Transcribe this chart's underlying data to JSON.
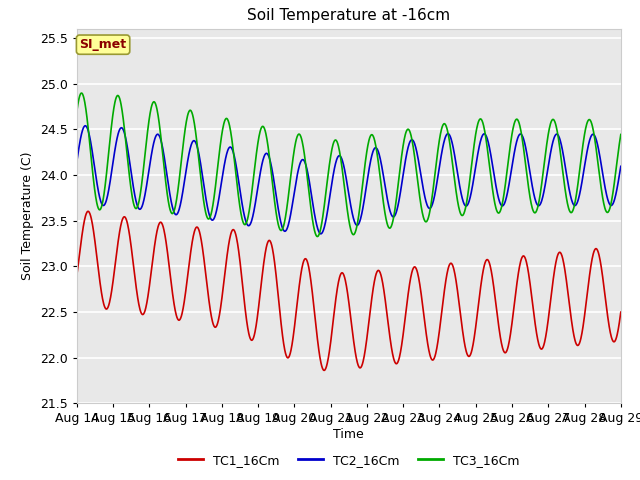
{
  "title": "Soil Temperature at -16cm",
  "xlabel": "Time",
  "ylabel": "Soil Temperature (C)",
  "ylim": [
    21.5,
    25.6
  ],
  "xlim": [
    0,
    15.0
  ],
  "xtick_labels": [
    "Aug 14",
    "Aug 15",
    "Aug 16",
    "Aug 17",
    "Aug 18",
    "Aug 19",
    "Aug 20",
    "Aug 21",
    "Aug 22",
    "Aug 23",
    "Aug 24",
    "Aug 25",
    "Aug 26",
    "Aug 27",
    "Aug 28",
    "Aug 29"
  ],
  "ytick_vals": [
    21.5,
    22.0,
    22.5,
    23.0,
    23.5,
    24.0,
    24.5,
    25.0,
    25.5
  ],
  "bg_color": "#e8e8e8",
  "fig_color": "#ffffff",
  "annotation_text": "SI_met",
  "annotation_bg": "#ffff99",
  "annotation_text_color": "#8b0000",
  "annotation_border_color": "#999933",
  "tc1_color": "#cc0000",
  "tc2_color": "#0000cc",
  "tc3_color": "#00aa00",
  "legend_labels": [
    "TC1_16Cm",
    "TC2_16Cm",
    "TC3_16Cm"
  ],
  "grid_color": "#ffffff",
  "lw": 1.2
}
